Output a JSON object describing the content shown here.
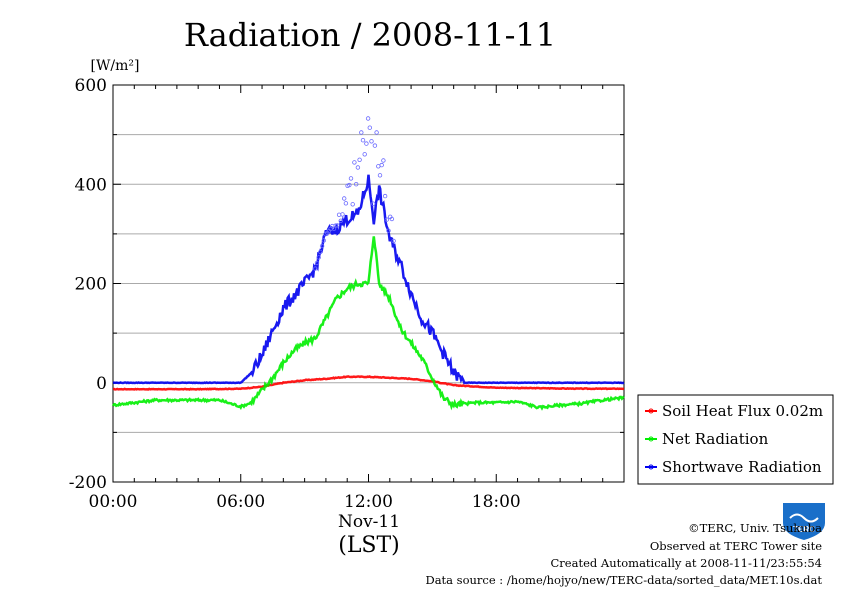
{
  "chart_data": {
    "type": "line",
    "title": "Radiation / 2008-11-11",
    "ylabel_unit": "[W/m²]",
    "ylim": [
      -200,
      600
    ],
    "xlim_hours": [
      0,
      24
    ],
    "y_ticks": [
      "600",
      "400",
      "200",
      "0",
      "-200"
    ],
    "x_ticks": [
      "00:00",
      "06:00",
      "12:00",
      "18:00"
    ],
    "x_date": "Nov-11",
    "x_caption": "(LST)",
    "grid": true,
    "legend_position": "outside-right-bottom",
    "series": [
      {
        "name": "Soil Heat Flux 0.02m",
        "color": "#ff0000",
        "hours": [
          0,
          2,
          4,
          6,
          7,
          8,
          9,
          10,
          11,
          12,
          13,
          14,
          15,
          16,
          18,
          20,
          22,
          24
        ],
        "values": [
          -13,
          -13,
          -13,
          -12,
          -8,
          0,
          5,
          8,
          12,
          12,
          10,
          8,
          3,
          -5,
          -10,
          -11,
          -12,
          -12
        ]
      },
      {
        "name": "Net Radiation",
        "color": "#00ee00",
        "hours": [
          0,
          1,
          2,
          3,
          4,
          5,
          6,
          6.5,
          7,
          7.5,
          8,
          8.5,
          9,
          9.5,
          10,
          10.5,
          11,
          11.5,
          12,
          12.25,
          12.5,
          13,
          13.5,
          14,
          14.5,
          15,
          15.5,
          16,
          17,
          18,
          19,
          20,
          21,
          22,
          23,
          24
        ],
        "values": [
          -45,
          -40,
          -35,
          -35,
          -35,
          -35,
          -48,
          -40,
          -15,
          10,
          40,
          65,
          80,
          90,
          130,
          170,
          190,
          200,
          200,
          300,
          200,
          170,
          110,
          80,
          50,
          10,
          -30,
          -45,
          -40,
          -40,
          -38,
          -50,
          -45,
          -42,
          -35,
          -30
        ]
      },
      {
        "name": "Shortwave Radiation",
        "color": "#0000ee",
        "hours": [
          0,
          2,
          4,
          6,
          6.5,
          7,
          7.5,
          8,
          8.5,
          9,
          9.5,
          10,
          10.5,
          11,
          11.5,
          12,
          12.25,
          12.5,
          13,
          13.5,
          14,
          14.5,
          15,
          15.5,
          16,
          16.5,
          18,
          20,
          22,
          24
        ],
        "values": [
          0,
          0,
          0,
          0,
          20,
          55,
          105,
          150,
          175,
          200,
          230,
          300,
          310,
          330,
          340,
          410,
          330,
          390,
          290,
          240,
          180,
          130,
          100,
          60,
          20,
          0,
          0,
          0,
          0,
          0
        ]
      }
    ]
  },
  "logo_text": "TERC",
  "credits": {
    "copyright": "©TERC, Univ. Tsukuba",
    "observed": "Observed at TERC Tower site",
    "created": "Created Automatically at 2008-11-11/23:55:54",
    "source": "Data source : /home/hojyo/new/TERC-data/sorted_data/MET.10s.dat"
  }
}
